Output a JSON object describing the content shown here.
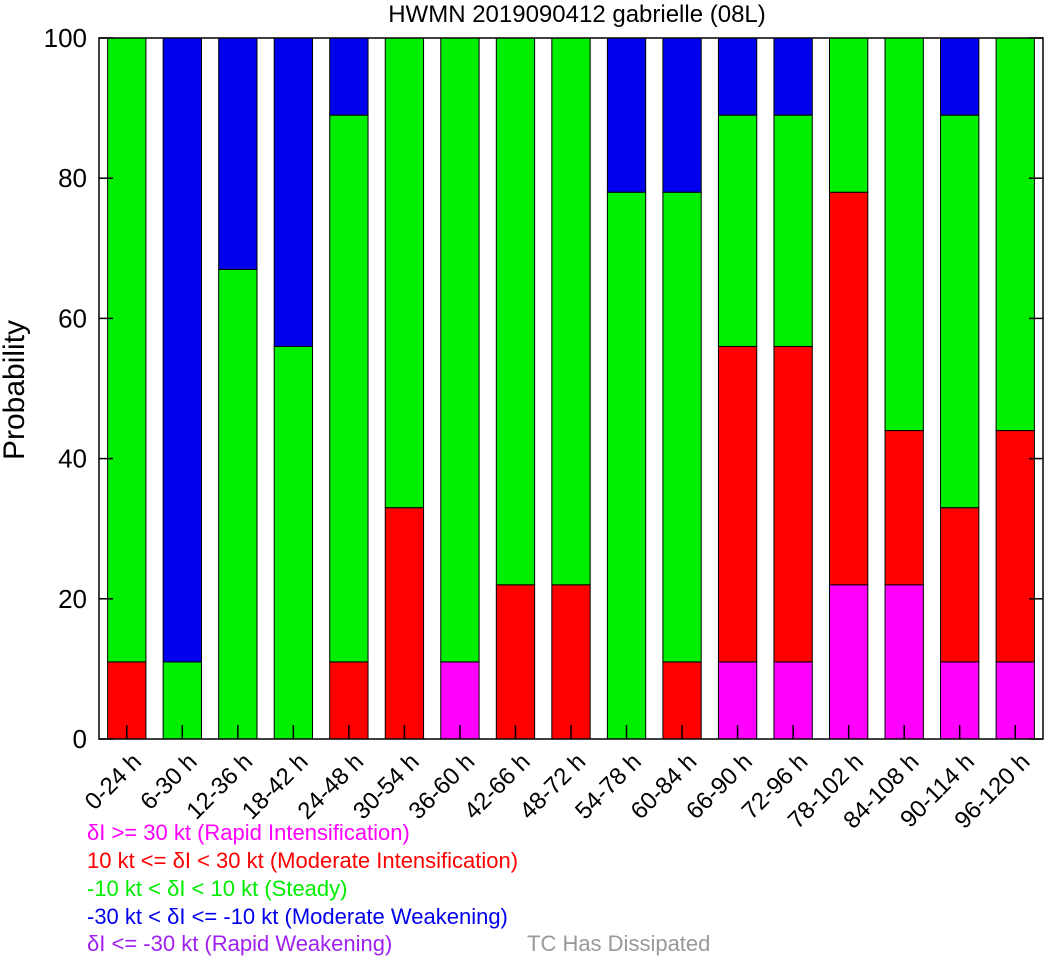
{
  "chart_data": {
    "type": "bar",
    "stacked": true,
    "title": "HWMN 2019090412 gabrielle (08L)",
    "xlabel": "",
    "ylabel": "Probability",
    "ylim": [
      0,
      100
    ],
    "yticks": [
      0,
      20,
      40,
      60,
      80,
      100
    ],
    "grid": false,
    "categories": [
      "0-24 h",
      "6-30 h",
      "12-36 h",
      "18-42 h",
      "24-48 h",
      "30-54 h",
      "36-60 h",
      "42-66 h",
      "48-72 h",
      "54-78 h",
      "60-84 h",
      "66-90 h",
      "72-96 h",
      "78-102 h",
      "84-108 h",
      "90-114 h",
      "96-120 h"
    ],
    "series": [
      {
        "name": "δI >= 30 kt (Rapid Intensification)",
        "color": "#ff00ff",
        "values": [
          0,
          0,
          0,
          0,
          0,
          0,
          11,
          0,
          0,
          0,
          0,
          11,
          11,
          22,
          22,
          11,
          11
        ]
      },
      {
        "name": "10 kt <= δI < 30 kt (Moderate Intensification)",
        "color": "#ff0000",
        "values": [
          11,
          0,
          0,
          0,
          11,
          33,
          0,
          22,
          22,
          0,
          11,
          45,
          45,
          56,
          22,
          22,
          33
        ]
      },
      {
        "name": "-10 kt < δI < 10 kt (Steady)",
        "color": "#00ee00",
        "values": [
          89,
          11,
          67,
          56,
          78,
          67,
          89,
          78,
          78,
          78,
          67,
          33,
          33,
          22,
          56,
          56,
          56
        ]
      },
      {
        "name": "-30 kt < δI <= -10 kt (Moderate Weakening)",
        "color": "#0000ee",
        "values": [
          0,
          89,
          33,
          44,
          11,
          0,
          0,
          0,
          0,
          22,
          22,
          11,
          11,
          0,
          0,
          11,
          0
        ]
      },
      {
        "name": "δI <= -30 kt (Rapid Weakening)",
        "color": "#a020f0",
        "values": [
          0,
          0,
          0,
          0,
          0,
          0,
          0,
          0,
          0,
          0,
          0,
          0,
          0,
          0,
          0,
          0,
          0
        ]
      }
    ],
    "extra_legend": {
      "name": "TC Has Dissipated",
      "color": "#999999"
    },
    "legend_position": "bottom-left"
  }
}
